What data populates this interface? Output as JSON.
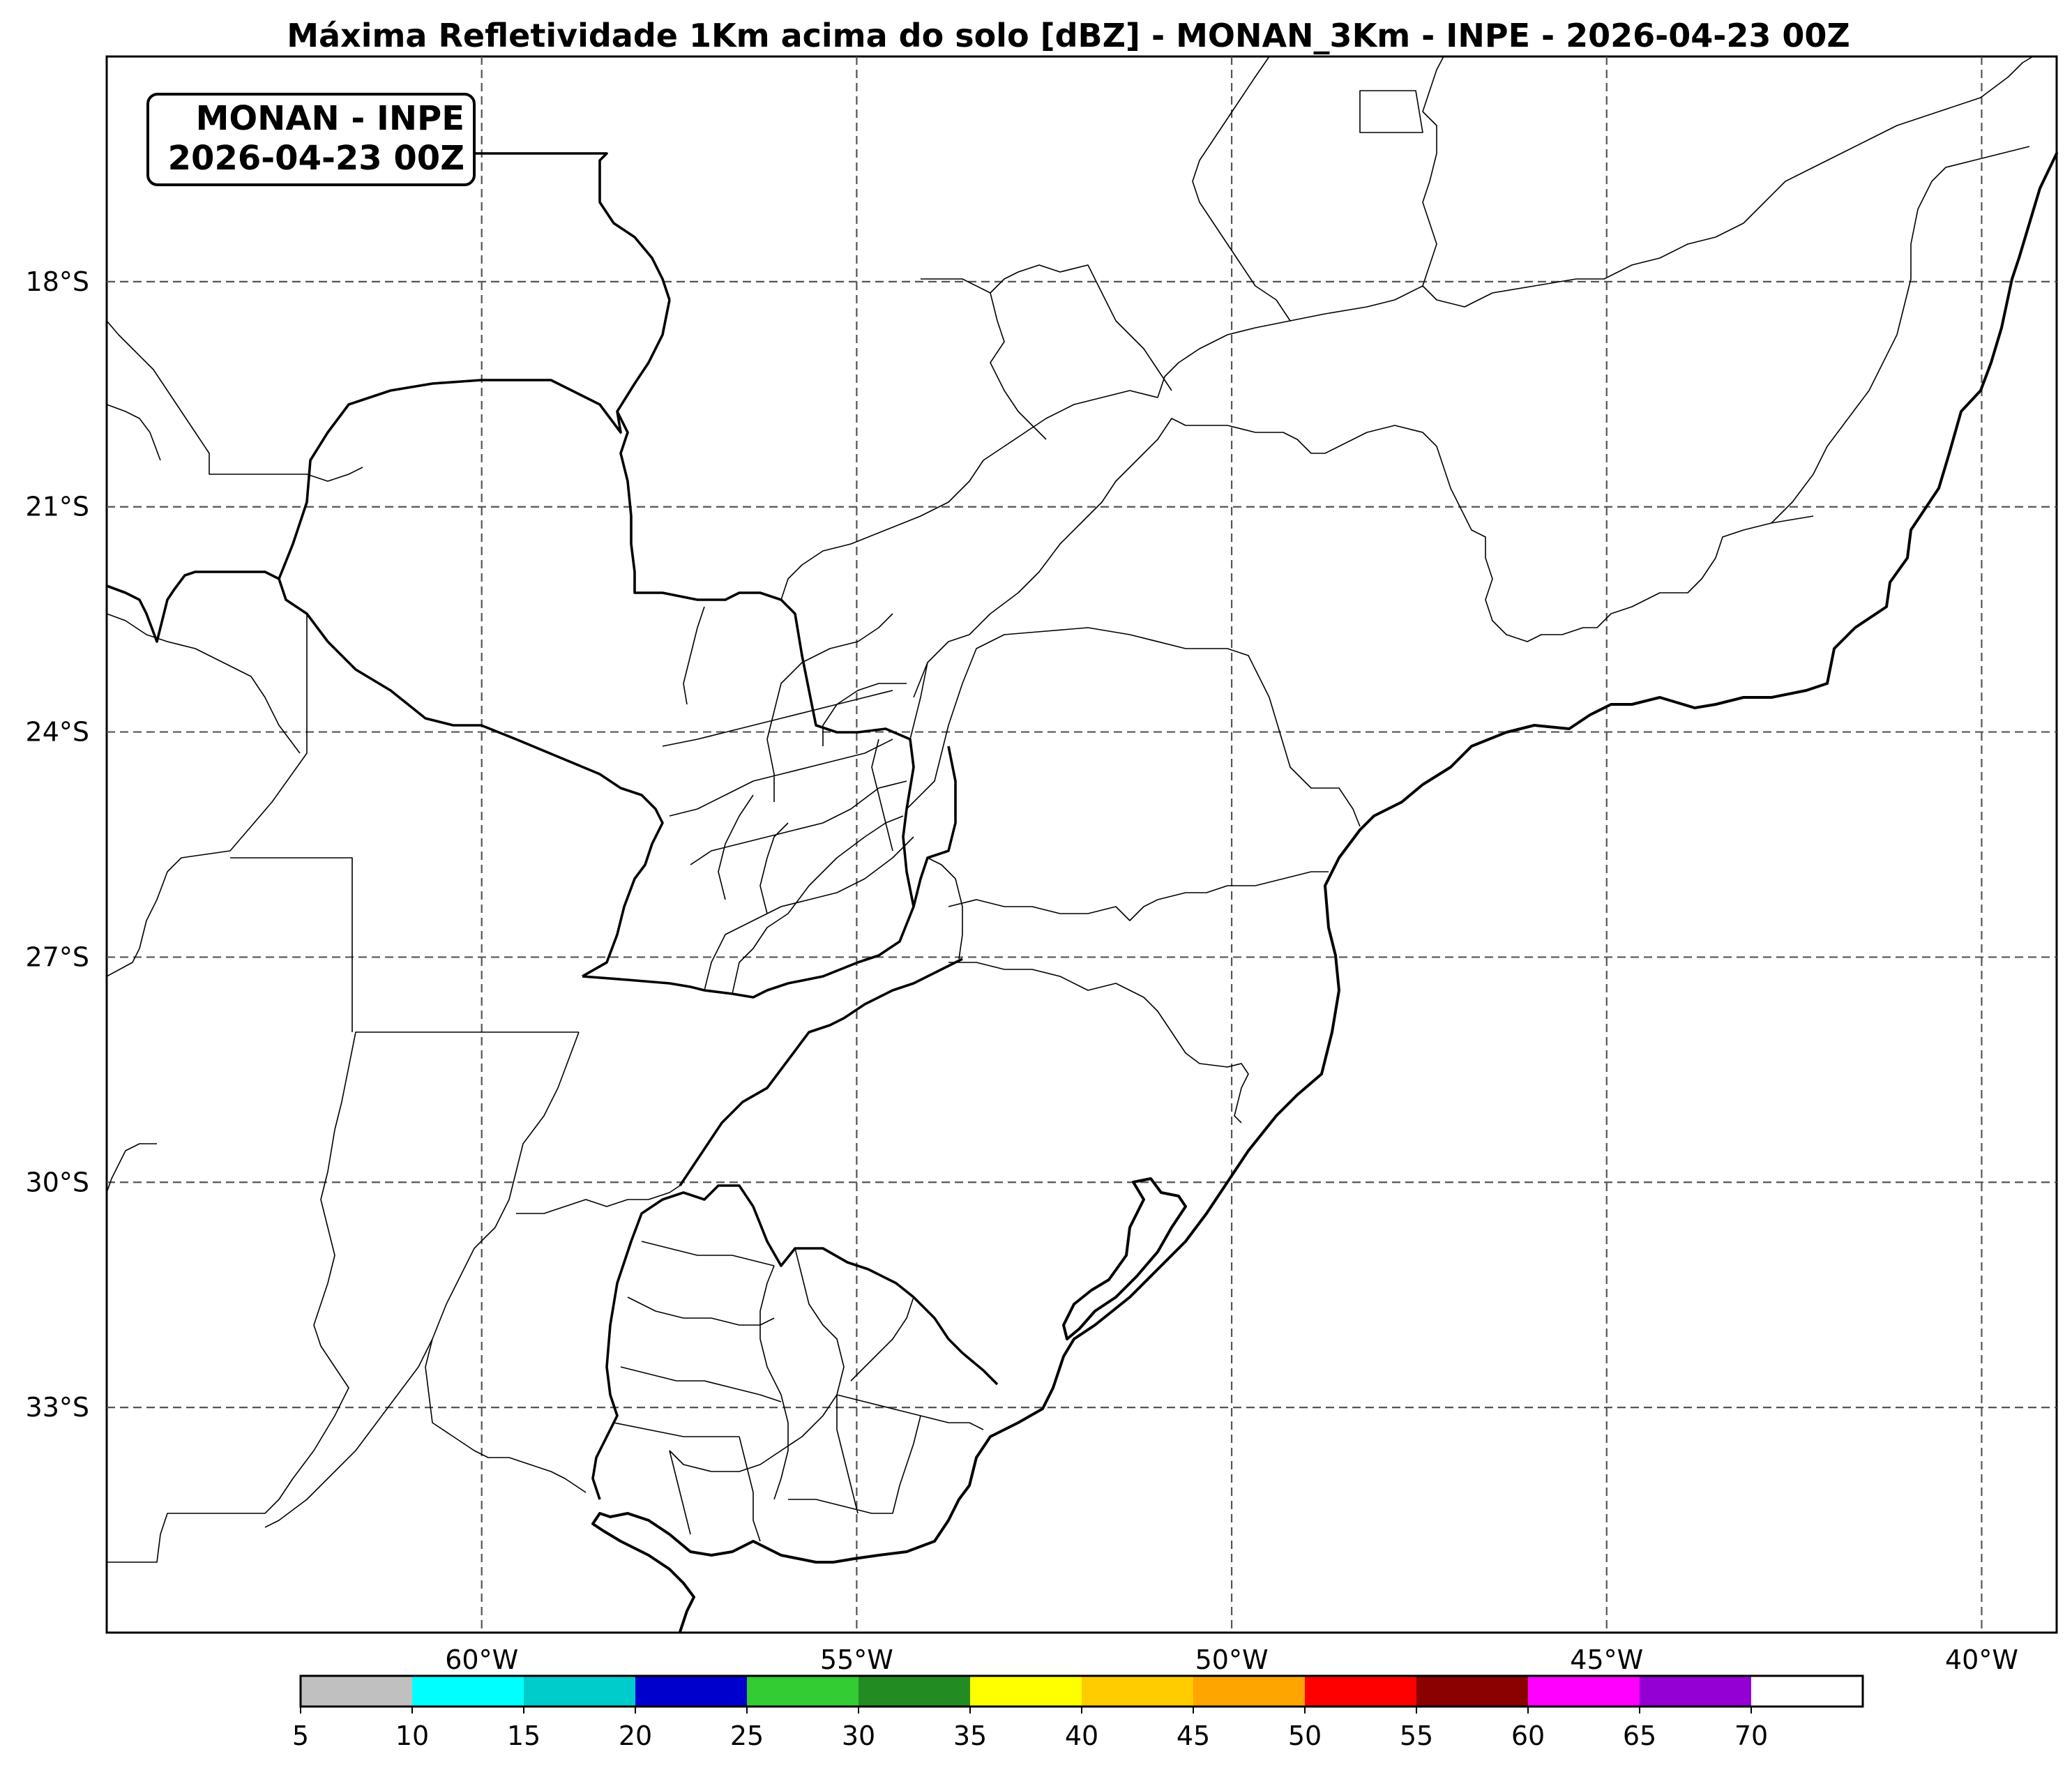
{
  "title": "Máxima Refletividade 1Km acima do solo [dBZ] - MONAN_3Km - INPE - 2026-04-23 00Z",
  "badge": {
    "line1": "MONAN - INPE",
    "line2": "2026-04-23 00Z"
  },
  "map": {
    "lon_range": [
      -65,
      -39
    ],
    "lat_range": [
      -36,
      -15
    ],
    "gridlines": "dashed",
    "lat_ticks": [
      {
        "value": -18,
        "label": "18°S"
      },
      {
        "value": -21,
        "label": "21°S"
      },
      {
        "value": -24,
        "label": "24°S"
      },
      {
        "value": -27,
        "label": "27°S"
      },
      {
        "value": -30,
        "label": "30°S"
      },
      {
        "value": -33,
        "label": "33°S"
      }
    ],
    "lon_ticks": [
      {
        "value": -60,
        "label": "60°W"
      },
      {
        "value": -55,
        "label": "55°W"
      },
      {
        "value": -50,
        "label": "50°W"
      },
      {
        "value": -45,
        "label": "45°W"
      },
      {
        "value": -40,
        "label": "40°W"
      }
    ]
  },
  "colorbar": {
    "bins": [
      {
        "from": 5,
        "to": 10,
        "color": "#c0c0c0"
      },
      {
        "from": 10,
        "to": 15,
        "color": "#00ffff"
      },
      {
        "from": 15,
        "to": 20,
        "color": "#00cccc"
      },
      {
        "from": 20,
        "to": 25,
        "color": "#0000cc"
      },
      {
        "from": 25,
        "to": 30,
        "color": "#33cc33"
      },
      {
        "from": 30,
        "to": 35,
        "color": "#228b22"
      },
      {
        "from": 35,
        "to": 40,
        "color": "#ffff00"
      },
      {
        "from": 40,
        "to": 45,
        "color": "#ffcc00"
      },
      {
        "from": 45,
        "to": 50,
        "color": "#ffa500"
      },
      {
        "from": 50,
        "to": 55,
        "color": "#ff0000"
      },
      {
        "from": 55,
        "to": 60,
        "color": "#8b0000"
      },
      {
        "from": 60,
        "to": 65,
        "color": "#ff00ff"
      },
      {
        "from": 65,
        "to": 70,
        "color": "#9400d3"
      },
      {
        "from": 70,
        "to": 75,
        "color": "#ffffff"
      }
    ],
    "tick_labels": [
      "5",
      "10",
      "15",
      "20",
      "25",
      "30",
      "35",
      "40",
      "45",
      "50",
      "55",
      "60",
      "65",
      "70"
    ]
  }
}
